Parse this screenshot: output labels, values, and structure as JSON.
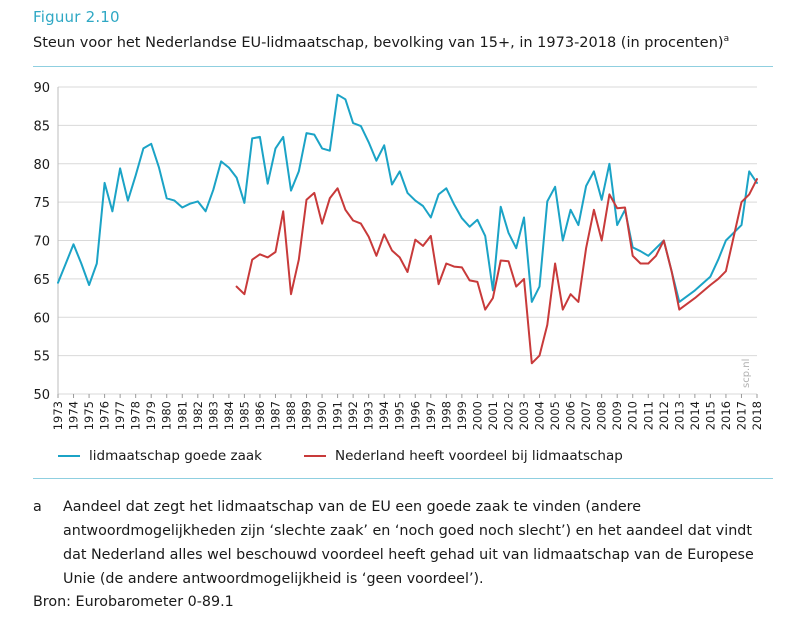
{
  "figure": {
    "label": "Figuur 2.10",
    "title": "Steun voor het Nederlandse EU-lidmaatschap, bevolking van 15+, in 1973-2018 (in procenten)",
    "title_note_mark": "a"
  },
  "watermark": "scp.nl",
  "colors": {
    "series1": "#1ba3c6",
    "series2": "#c83a3a",
    "accent": "#2fa8c4",
    "rule": "#8fcfe0"
  },
  "footnote": {
    "mark": "a",
    "text": "Aandeel dat zegt het lidmaatschap van de EU een goede zaak te vinden (andere antwoordmogelijkheden zijn ‘slechte zaak’ en ‘noch goed noch slecht’) en het aandeel dat vindt dat Nederland alles wel beschouwd voordeel heeft gehad uit van lidmaatschap van de Europese Unie (de andere antwoordmogelijkheid is ‘geen voordeel’)."
  },
  "source": "Bron: Eurobarometer 0-89.1",
  "chart_data": {
    "type": "line",
    "xlim": [
      1973,
      2018
    ],
    "ylim": [
      50,
      90
    ],
    "yticks": [
      50,
      55,
      60,
      65,
      70,
      75,
      80,
      85,
      90
    ],
    "xticks": [
      1973,
      1974,
      1975,
      1976,
      1977,
      1978,
      1979,
      1980,
      1981,
      1982,
      1983,
      1984,
      1985,
      1986,
      1987,
      1988,
      1989,
      1990,
      1991,
      1992,
      1993,
      1994,
      1995,
      1996,
      1997,
      1998,
      1999,
      2000,
      2001,
      2002,
      2003,
      2004,
      2005,
      2006,
      2007,
      2008,
      2009,
      2010,
      2011,
      2012,
      2013,
      2014,
      2015,
      2016,
      2017,
      2018
    ],
    "grid": "horizontal",
    "legend_position": "bottom",
    "series": [
      {
        "name": "lidmaatschap goede zaak",
        "color": "#1ba3c6",
        "x": [
          1973.0,
          1973.5,
          1974.0,
          1974.5,
          1975.0,
          1975.5,
          1976.0,
          1976.5,
          1977.0,
          1977.5,
          1978.0,
          1978.5,
          1979.0,
          1979.5,
          1980.0,
          1980.5,
          1981.0,
          1981.5,
          1982.0,
          1982.5,
          1983.0,
          1983.5,
          1984.0,
          1984.5,
          1985.0,
          1985.5,
          1986.0,
          1986.5,
          1987.0,
          1987.5,
          1988.0,
          1988.5,
          1989.0,
          1989.5,
          1990.0,
          1990.5,
          1991.0,
          1991.5,
          1992.0,
          1992.5,
          1993.0,
          1993.5,
          1994.0,
          1994.5,
          1995.0,
          1995.5,
          1996.0,
          1996.5,
          1997.0,
          1997.5,
          1998.0,
          1998.5,
          1999.0,
          1999.5,
          2000.0,
          2000.5,
          2001.0,
          2001.5,
          2002.0,
          2002.5,
          2003.0,
          2003.5,
          2004.0,
          2004.5,
          2005.0,
          2005.5,
          2006.0,
          2006.5,
          2007.0,
          2007.5,
          2008.0,
          2008.5,
          2009.0,
          2009.5,
          2010.0,
          2010.5,
          2011.0,
          2011.5,
          2012.0,
          2012.5,
          2013.0,
          2014.0,
          2015.0,
          2015.5,
          2016.0,
          2017.0,
          2017.5,
          2018.0
        ],
        "values": [
          64.5,
          67,
          69.5,
          67,
          64.2,
          67,
          77.5,
          73.8,
          79.4,
          75.2,
          78.5,
          82,
          82.6,
          79.5,
          75.5,
          75.2,
          74.3,
          74.8,
          75.1,
          73.8,
          76.6,
          80.3,
          79.5,
          78.2,
          74.9,
          83.3,
          83.5,
          77.4,
          82,
          83.5,
          76.5,
          79,
          84,
          83.8,
          82,
          81.7,
          89,
          88.4,
          85.3,
          84.9,
          82.8,
          80.4,
          82.4,
          77.3,
          79,
          76.2,
          75.2,
          74.5,
          73,
          76,
          76.8,
          74.7,
          72.9,
          71.8,
          72.7,
          70.6,
          63.5,
          74.4,
          71,
          69,
          73,
          62,
          64,
          75.1,
          77,
          70,
          74,
          72,
          77.1,
          79,
          75.3,
          80,
          72,
          74,
          69.1,
          68.6,
          68,
          69,
          70,
          66,
          62,
          63.5,
          65.3,
          67.5,
          70,
          72,
          79,
          77.5
        ]
      },
      {
        "name": "Nederland heeft voordeel bij lidmaatschap",
        "color": "#c83a3a",
        "x": [
          1984.5,
          1985.0,
          1985.5,
          1986.0,
          1986.5,
          1987.0,
          1987.5,
          1988.0,
          1988.5,
          1989.0,
          1989.5,
          1990.0,
          1990.5,
          1991.0,
          1991.5,
          1992.0,
          1992.5,
          1993.0,
          1993.5,
          1994.0,
          1994.5,
          1995.0,
          1995.5,
          1996.0,
          1996.5,
          1997.0,
          1997.5,
          1998.0,
          1998.5,
          1999.0,
          1999.5,
          2000.0,
          2000.5,
          2001.0,
          2001.5,
          2002.0,
          2002.5,
          2003.0,
          2003.5,
          2004.0,
          2004.5,
          2005.0,
          2005.5,
          2006.0,
          2006.5,
          2007.0,
          2007.5,
          2008.0,
          2008.5,
          2009.0,
          2009.5,
          2010.0,
          2010.5,
          2011.0,
          2011.5,
          2012.0,
          2012.5,
          2013.0,
          2014.0,
          2015.0,
          2015.5,
          2016.0,
          2017.0,
          2017.5,
          2018.0
        ],
        "values": [
          64,
          63,
          67.5,
          68.2,
          67.8,
          68.5,
          73.8,
          63,
          67.5,
          75.3,
          76.2,
          72.2,
          75.5,
          76.8,
          74,
          72.6,
          72.2,
          70.5,
          68,
          70.8,
          68.7,
          67.8,
          65.9,
          70.1,
          69.3,
          70.6,
          64.3,
          67,
          66.6,
          66.5,
          64.8,
          64.6,
          61,
          62.5,
          67.4,
          67.3,
          64,
          65,
          54,
          55,
          59,
          67,
          61,
          63,
          62,
          69,
          74,
          70,
          76,
          74.2,
          74.3,
          68,
          67,
          67,
          68,
          70,
          66,
          61,
          62.5,
          64.2,
          65,
          66,
          75,
          76,
          78
        ]
      }
    ]
  }
}
